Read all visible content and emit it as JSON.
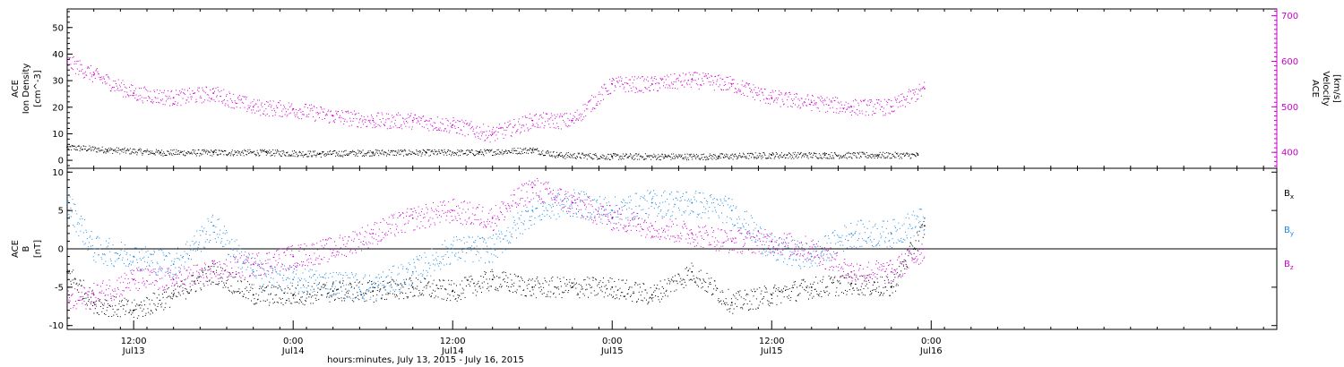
{
  "chart_data": [
    {
      "type": "scatter",
      "panel": "top",
      "xlabel": "hours:minutes, July 13, 2015 - July 16, 2015",
      "x_range": [
        "2015-07-13T07:00",
        "2015-07-17T02:00"
      ],
      "x_ticks": [
        {
          "x": "2015-07-13T12:00",
          "time": "12:00",
          "date": "Jul13"
        },
        {
          "x": "2015-07-14T00:00",
          "time": "0:00",
          "date": "Jul14"
        },
        {
          "x": "2015-07-14T12:00",
          "time": "12:00",
          "date": "Jul14"
        },
        {
          "x": "2015-07-15T00:00",
          "time": "0:00",
          "date": "Jul15"
        },
        {
          "x": "2015-07-15T12:00",
          "time": "12:00",
          "date": "Jul15"
        },
        {
          "x": "2015-07-16T00:00",
          "time": "0:00",
          "date": "Jul16"
        }
      ],
      "y_left": {
        "label_lines": [
          "ACE",
          "Ion Density"
        ],
        "unit": "[cm^-3]",
        "ylim": [
          -3,
          57
        ],
        "ticks": [
          0,
          10,
          20,
          30,
          40,
          50
        ]
      },
      "y_right": {
        "label_lines": [
          "ACE",
          "Velocity"
        ],
        "unit": "[km/s]",
        "ylim": [
          365,
          715
        ],
        "ticks": [
          400,
          500,
          600,
          700
        ],
        "color": "#cc00cc"
      },
      "series": [
        {
          "axis": "left",
          "color": "#000000",
          "x": [
            "2015-07-13T07:00",
            "2015-07-13T10:00",
            "2015-07-13T14:00",
            "2015-07-13T18:00",
            "2015-07-13T22:00",
            "2015-07-14T02:00",
            "2015-07-14T06:00",
            "2015-07-14T10:00",
            "2015-07-14T14:00",
            "2015-07-14T18:00",
            "2015-07-14T20:00",
            "2015-07-15T00:00",
            "2015-07-15T04:00",
            "2015-07-15T08:00",
            "2015-07-15T12:00",
            "2015-07-15T16:00",
            "2015-07-15T20:00",
            "2015-07-15T23:00"
          ],
          "values": [
            5,
            4,
            3,
            3,
            3,
            2.5,
            3,
            3,
            3,
            4,
            2,
            1.5,
            1.5,
            1.5,
            2,
            2,
            2,
            2
          ]
        },
        {
          "axis": "right",
          "color": "#cc00cc",
          "x": [
            "2015-07-13T07:00",
            "2015-07-13T09:00",
            "2015-07-13T12:00",
            "2015-07-13T15:00",
            "2015-07-13T18:00",
            "2015-07-13T21:00",
            "2015-07-14T00:00",
            "2015-07-14T03:00",
            "2015-07-14T06:00",
            "2015-07-14T09:00",
            "2015-07-14T12:00",
            "2015-07-14T15:00",
            "2015-07-14T18:00",
            "2015-07-14T21:00",
            "2015-07-15T00:00",
            "2015-07-15T03:00",
            "2015-07-15T06:00",
            "2015-07-15T09:00",
            "2015-07-15T12:00",
            "2015-07-15T15:00",
            "2015-07-15T18:00",
            "2015-07-15T21:00",
            "2015-07-15T23:30"
          ],
          "values": [
            600,
            570,
            530,
            520,
            530,
            500,
            495,
            480,
            470,
            470,
            460,
            440,
            470,
            470,
            550,
            550,
            560,
            550,
            520,
            510,
            500,
            500,
            540
          ]
        }
      ]
    },
    {
      "type": "scatter",
      "panel": "bottom",
      "y_left": {
        "label_lines": [
          "ACE",
          "B"
        ],
        "unit": "[nT]",
        "ylim": [
          -10.5,
          10.5
        ],
        "ticks": [
          -10,
          -5,
          0,
          5,
          10
        ]
      },
      "legend": {
        "placement": "right"
      },
      "series": [
        {
          "name": "B_x",
          "color": "#000000",
          "x": [
            "2015-07-13T07:00",
            "2015-07-13T09:00",
            "2015-07-13T12:00",
            "2015-07-13T15:00",
            "2015-07-13T18:00",
            "2015-07-13T21:00",
            "2015-07-14T00:00",
            "2015-07-14T03:00",
            "2015-07-14T06:00",
            "2015-07-14T09:00",
            "2015-07-14T12:00",
            "2015-07-14T15:00",
            "2015-07-14T18:00",
            "2015-07-14T21:00",
            "2015-07-15T00:00",
            "2015-07-15T03:00",
            "2015-07-15T06:00",
            "2015-07-15T09:00",
            "2015-07-15T12:00",
            "2015-07-15T15:00",
            "2015-07-15T18:00",
            "2015-07-15T21:00",
            "2015-07-15T23:30"
          ],
          "values": [
            -3,
            -7,
            -8,
            -6,
            -3,
            -6,
            -6,
            -5.5,
            -5.5,
            -5,
            -5.5,
            -4,
            -5,
            -5,
            -5,
            -6,
            -3,
            -7,
            -6,
            -5,
            -4.5,
            -5,
            3
          ]
        },
        {
          "name": "B_y",
          "color": "#1e88e5",
          "x": [
            "2015-07-13T07:00",
            "2015-07-13T09:00",
            "2015-07-13T12:00",
            "2015-07-13T15:00",
            "2015-07-13T18:00",
            "2015-07-13T21:00",
            "2015-07-14T00:00",
            "2015-07-14T03:00",
            "2015-07-14T06:00",
            "2015-07-14T09:00",
            "2015-07-14T12:00",
            "2015-07-14T15:00",
            "2015-07-14T18:00",
            "2015-07-14T21:00",
            "2015-07-15T00:00",
            "2015-07-15T03:00",
            "2015-07-15T06:00",
            "2015-07-15T09:00",
            "2015-07-15T12:00",
            "2015-07-15T15:00",
            "2015-07-15T18:00",
            "2015-07-15T21:00",
            "2015-07-15T23:30"
          ],
          "values": [
            6,
            0,
            -1,
            -2,
            3,
            -3,
            -4,
            -4.5,
            -5,
            -3,
            0,
            0,
            5,
            6,
            5,
            6,
            6,
            5,
            0,
            -1,
            2,
            2,
            4
          ]
        },
        {
          "name": "B_z",
          "color": "#cc00cc",
          "x": [
            "2015-07-13T07:00",
            "2015-07-13T09:00",
            "2015-07-13T12:00",
            "2015-07-13T15:00",
            "2015-07-13T18:00",
            "2015-07-13T21:00",
            "2015-07-14T00:00",
            "2015-07-14T03:00",
            "2015-07-14T06:00",
            "2015-07-14T09:00",
            "2015-07-14T12:00",
            "2015-07-14T15:00",
            "2015-07-14T18:00",
            "2015-07-14T21:00",
            "2015-07-15T00:00",
            "2015-07-15T03:00",
            "2015-07-15T06:00",
            "2015-07-15T09:00",
            "2015-07-15T12:00",
            "2015-07-15T15:00",
            "2015-07-15T18:00",
            "2015-07-15T21:00",
            "2015-07-15T23:30"
          ],
          "values": [
            -7,
            -6,
            -4,
            -4,
            -3,
            -2,
            -1,
            0,
            2,
            4,
            5,
            4,
            8,
            6,
            4,
            3,
            2,
            1,
            1,
            0,
            -3,
            -3,
            0
          ]
        }
      ],
      "reference_line": 0
    }
  ]
}
